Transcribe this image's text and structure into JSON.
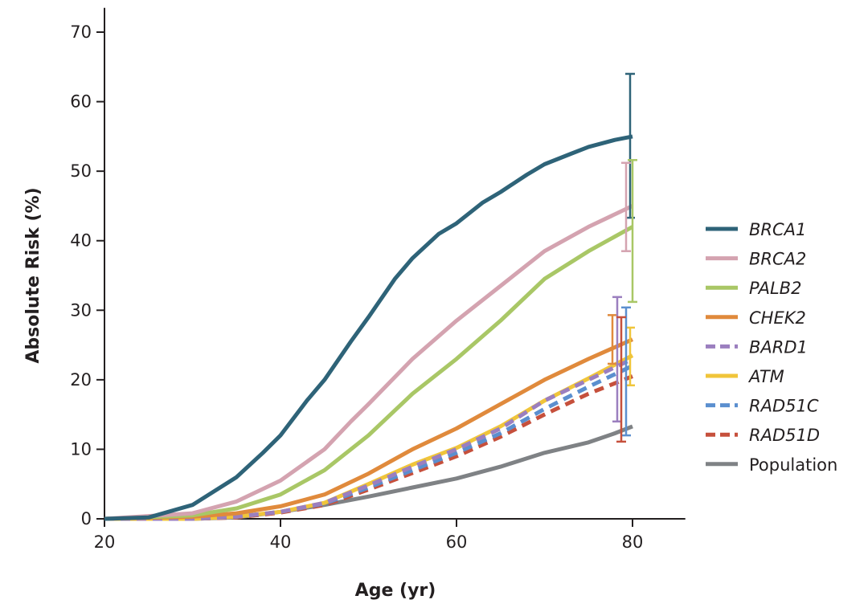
{
  "chart_data": {
    "type": "line",
    "xlabel": "Age (yr)",
    "ylabel": "Absolute Risk (%)",
    "xlim": [
      20,
      86
    ],
    "ylim": [
      0,
      73.5
    ],
    "xticks": [
      20,
      40,
      60,
      80
    ],
    "yticks": [
      0,
      10,
      20,
      30,
      40,
      50,
      60,
      70
    ],
    "grid": false,
    "legend_position": "right",
    "series": [
      {
        "name": "BRCA1",
        "color": "#2e6378",
        "dashed": false,
        "x": [
          20,
          25,
          30,
          35,
          38,
          40,
          43,
          45,
          48,
          50,
          53,
          55,
          58,
          60,
          63,
          65,
          68,
          70,
          73,
          75,
          78,
          80
        ],
        "y": [
          0,
          0.2,
          2,
          6,
          9.5,
          12,
          17,
          20,
          25.5,
          29,
          34.5,
          37.5,
          41,
          42.5,
          45.5,
          47,
          49.5,
          51,
          52.5,
          53.5,
          54.5,
          55
        ],
        "ci_at_80": [
          43.3,
          64
        ]
      },
      {
        "name": "BRCA2",
        "color": "#d4a3b0",
        "dashed": false,
        "x": [
          20,
          30,
          35,
          40,
          45,
          48,
          50,
          55,
          60,
          65,
          70,
          75,
          80
        ],
        "y": [
          0,
          0.8,
          2.5,
          5.5,
          10,
          14,
          16.5,
          23,
          28.5,
          33.5,
          38.5,
          42,
          45
        ],
        "ci_at_80": [
          38.5,
          51.2
        ]
      },
      {
        "name": "PALB2",
        "color": "#a9c766",
        "dashed": false,
        "x": [
          20,
          30,
          35,
          40,
          45,
          50,
          55,
          60,
          65,
          70,
          75,
          80
        ],
        "y": [
          0,
          0.5,
          1.5,
          3.5,
          7,
          12,
          18,
          23,
          28.5,
          34.5,
          38.5,
          42
        ],
        "ci_at_80": [
          31.2,
          51.6
        ]
      },
      {
        "name": "CHEK2",
        "color": "#e08a3c",
        "dashed": false,
        "x": [
          20,
          30,
          35,
          40,
          45,
          50,
          55,
          60,
          65,
          70,
          75,
          80
        ],
        "y": [
          0,
          0.3,
          0.8,
          1.8,
          3.5,
          6.5,
          10,
          13,
          16.5,
          20,
          23,
          25.8
        ],
        "ci_at_80": [
          22.3,
          29.3
        ]
      },
      {
        "name": "BARD1",
        "color": "#9b7fbf",
        "dashed": true,
        "x": [
          20,
          30,
          35,
          40,
          45,
          50,
          55,
          60,
          65,
          70,
          75,
          80
        ],
        "y": [
          0,
          0,
          0.3,
          1,
          2.3,
          4.8,
          7.5,
          10,
          13,
          17,
          20,
          23
        ],
        "ci_at_80": [
          14,
          31.9
        ]
      },
      {
        "name": "ATM",
        "color": "#f0c53a",
        "dashed": false,
        "x": [
          20,
          30,
          35,
          40,
          45,
          50,
          55,
          60,
          65,
          70,
          75,
          80
        ],
        "y": [
          0,
          0,
          0.3,
          1,
          2.3,
          5,
          7.8,
          10.2,
          13.3,
          17,
          20.2,
          23.5
        ],
        "ci_at_80": [
          19.2,
          27.5
        ]
      },
      {
        "name": "RAD51C",
        "color": "#5b8fcf",
        "dashed": true,
        "x": [
          20,
          30,
          35,
          40,
          45,
          50,
          55,
          60,
          65,
          70,
          75,
          80
        ],
        "y": [
          0,
          0,
          0.3,
          1,
          2.2,
          4.5,
          7,
          9.5,
          12.3,
          15.8,
          19,
          22
        ],
        "ci_at_80": [
          12,
          30.4
        ]
      },
      {
        "name": "RAD51D",
        "color": "#c6503c",
        "dashed": true,
        "x": [
          20,
          30,
          35,
          40,
          45,
          50,
          55,
          60,
          65,
          70,
          75,
          80
        ],
        "y": [
          0,
          0,
          0.2,
          0.9,
          2,
          4.2,
          6.6,
          9,
          11.8,
          15,
          18,
          20.5
        ],
        "ci_at_80": [
          11.1,
          29
        ]
      },
      {
        "name": "Population",
        "color": "#7f8285",
        "dashed": false,
        "x": [
          20,
          30,
          35,
          40,
          45,
          50,
          55,
          60,
          65,
          70,
          75,
          78,
          80
        ],
        "y": [
          0,
          0,
          0.2,
          1,
          2,
          3.2,
          4.5,
          5.8,
          7.5,
          9.5,
          11,
          12.3,
          13.3
        ]
      }
    ]
  }
}
